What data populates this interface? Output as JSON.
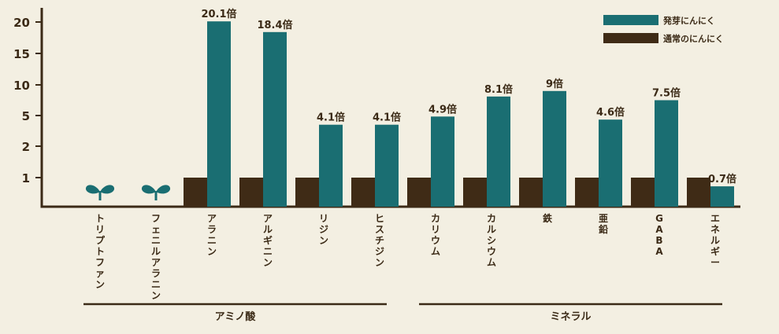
{
  "chart_data": {
    "type": "bar",
    "y_scale": "nonlinear",
    "yticks": [
      "1",
      "2",
      "5",
      "10",
      "15",
      "20"
    ],
    "ylim": [
      0,
      20
    ],
    "categories": [
      "トリプトファン",
      "フェニルアラニン",
      "アラニン",
      "アルギニン",
      "リジン",
      "ヒスチジン",
      "カリウム",
      "カルシウム",
      "鉄",
      "亜鉛",
      "GABA",
      "エネルギー"
    ],
    "series": [
      {
        "name": "発芽にんにく",
        "color": "#1a6e72",
        "values": [
          null,
          null,
          20.1,
          18.4,
          4.1,
          4.1,
          4.9,
          8.1,
          9,
          4.6,
          7.5,
          0.7
        ]
      },
      {
        "name": "通常のにんにく",
        "color": "#3f2b16",
        "values": [
          null,
          null,
          1,
          1,
          1,
          1,
          1,
          1,
          1,
          1,
          1,
          1
        ]
      }
    ],
    "data_labels": [
      "",
      "",
      "20.1倍",
      "18.4倍",
      "4.1倍",
      "4.1倍",
      "4.9倍",
      "8.1倍",
      "9倍",
      "4.6倍",
      "7.5倍",
      "0.7倍"
    ],
    "sprout_marker_categories": [
      "トリプトファン",
      "フェニルアラニン"
    ],
    "groups": [
      {
        "label": "アミノ酸",
        "from": "トリプトファン",
        "to": "ヒスチジン"
      },
      {
        "label": "ミネラル",
        "from": "カリウム",
        "to": "エネルギー"
      }
    ],
    "legend": {
      "position": "top-right"
    },
    "grid": false
  }
}
